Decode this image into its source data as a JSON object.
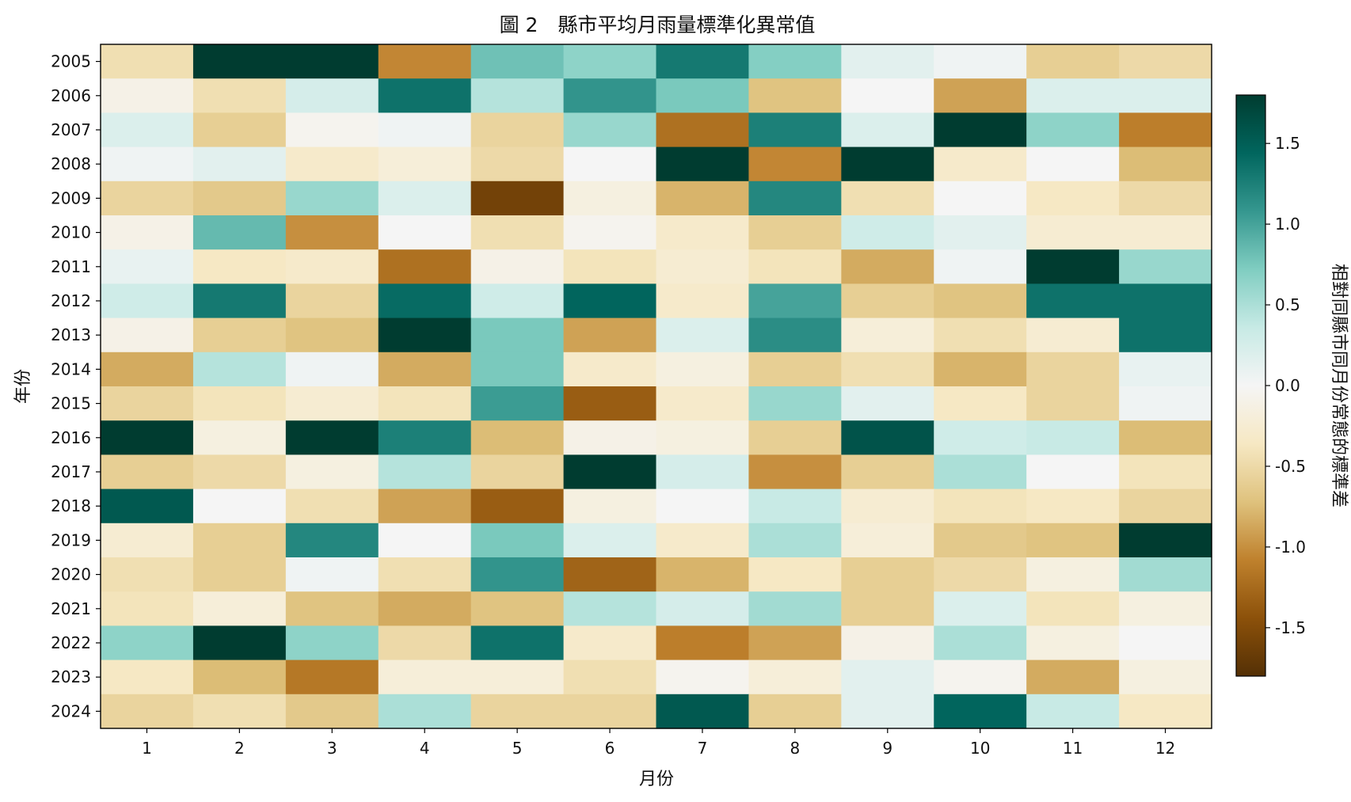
{
  "chart_data": {
    "type": "heatmap",
    "title": "圖 2　縣市平均月雨量標準化異常值",
    "xlabel": "月份",
    "ylabel": "年份",
    "colorbar_label": "相對同縣市同月份常態的標準差",
    "x_categories": [
      "1",
      "2",
      "3",
      "4",
      "5",
      "6",
      "7",
      "8",
      "9",
      "10",
      "11",
      "12"
    ],
    "y_categories": [
      "2005",
      "2006",
      "2007",
      "2008",
      "2009",
      "2010",
      "2011",
      "2012",
      "2013",
      "2014",
      "2015",
      "2016",
      "2017",
      "2018",
      "2019",
      "2020",
      "2021",
      "2022",
      "2023",
      "2024"
    ],
    "values": [
      [
        -0.45,
        1.9,
        1.9,
        -1.05,
        0.8,
        0.65,
        1.3,
        0.7,
        0.15,
        0.05,
        -0.6,
        -0.5
      ],
      [
        -0.1,
        -0.45,
        0.25,
        1.35,
        0.45,
        1.1,
        0.75,
        -0.7,
        0.0,
        -0.9,
        0.2,
        0.2
      ],
      [
        0.2,
        -0.6,
        -0.05,
        0.05,
        -0.55,
        0.6,
        -1.2,
        1.25,
        0.2,
        1.9,
        0.65,
        -1.1
      ],
      [
        0.05,
        0.15,
        -0.3,
        -0.2,
        -0.5,
        0.0,
        1.9,
        -1.05,
        1.9,
        -0.3,
        0.0,
        -0.75
      ],
      [
        -0.55,
        -0.65,
        0.6,
        0.2,
        -1.6,
        -0.15,
        -0.8,
        1.2,
        -0.45,
        0.0,
        -0.35,
        -0.5
      ],
      [
        -0.1,
        0.85,
        -1.0,
        0.0,
        -0.45,
        -0.05,
        -0.3,
        -0.6,
        0.3,
        0.15,
        -0.25,
        -0.25
      ],
      [
        0.1,
        -0.35,
        -0.3,
        -1.2,
        -0.1,
        -0.4,
        -0.25,
        -0.4,
        -0.85,
        0.05,
        1.9,
        0.6
      ],
      [
        0.3,
        1.3,
        -0.55,
        1.4,
        0.3,
        1.45,
        -0.3,
        1.0,
        -0.6,
        -0.7,
        1.35,
        1.35
      ],
      [
        -0.1,
        -0.6,
        -0.7,
        1.9,
        0.75,
        -0.9,
        0.2,
        1.15,
        -0.2,
        -0.45,
        -0.25,
        1.35
      ],
      [
        -0.85,
        0.45,
        0.05,
        -0.85,
        0.75,
        -0.3,
        -0.15,
        -0.6,
        -0.45,
        -0.8,
        -0.55,
        0.1
      ],
      [
        -0.55,
        -0.4,
        -0.25,
        -0.4,
        1.05,
        -1.35,
        -0.3,
        0.6,
        0.15,
        -0.35,
        -0.55,
        0.05
      ],
      [
        1.9,
        -0.15,
        1.9,
        1.25,
        -0.75,
        -0.1,
        -0.15,
        -0.6,
        1.6,
        0.3,
        0.35,
        -0.75
      ],
      [
        -0.6,
        -0.5,
        -0.15,
        0.45,
        -0.55,
        1.9,
        0.25,
        -1.0,
        -0.6,
        0.5,
        0.0,
        -0.4
      ],
      [
        1.55,
        0.0,
        -0.45,
        -0.9,
        -1.35,
        -0.15,
        0.0,
        0.35,
        -0.25,
        -0.4,
        -0.35,
        -0.55
      ],
      [
        -0.25,
        -0.6,
        1.2,
        0.0,
        0.75,
        0.2,
        -0.3,
        0.5,
        -0.2,
        -0.65,
        -0.7,
        1.9
      ],
      [
        -0.45,
        -0.6,
        0.05,
        -0.45,
        1.1,
        -1.3,
        -0.8,
        -0.35,
        -0.6,
        -0.5,
        -0.15,
        0.55
      ],
      [
        -0.4,
        -0.2,
        -0.7,
        -0.85,
        -0.7,
        0.45,
        0.25,
        0.55,
        -0.6,
        0.2,
        -0.4,
        -0.15
      ],
      [
        0.65,
        1.9,
        0.65,
        -0.5,
        1.35,
        -0.3,
        -1.1,
        -0.9,
        -0.1,
        0.5,
        -0.15,
        0.0
      ],
      [
        -0.35,
        -0.75,
        -1.15,
        -0.2,
        -0.2,
        -0.45,
        -0.05,
        -0.2,
        0.15,
        -0.05,
        -0.85,
        -0.15
      ],
      [
        -0.55,
        -0.45,
        -0.65,
        0.5,
        -0.55,
        -0.55,
        1.55,
        -0.6,
        0.15,
        1.45,
        0.35,
        -0.35
      ]
    ],
    "colorbar": {
      "vmin": -1.8,
      "vmax": 1.8,
      "ticks": [
        -1.5,
        -1.0,
        -0.5,
        0.0,
        0.5,
        1.0,
        1.5
      ],
      "tick_labels": [
        "-1.5",
        "-1.0",
        "-0.5",
        "0.0",
        "0.5",
        "1.0",
        "1.5"
      ]
    },
    "colormap": "BrBG",
    "colormap_stops": [
      "#543005",
      "#8c510a",
      "#bf812d",
      "#dfc27d",
      "#f6e8c3",
      "#f5f5f5",
      "#c7eae5",
      "#80cdc1",
      "#35978f",
      "#01665e",
      "#003c30"
    ],
    "grid": false,
    "legend": "colorbar-right"
  }
}
